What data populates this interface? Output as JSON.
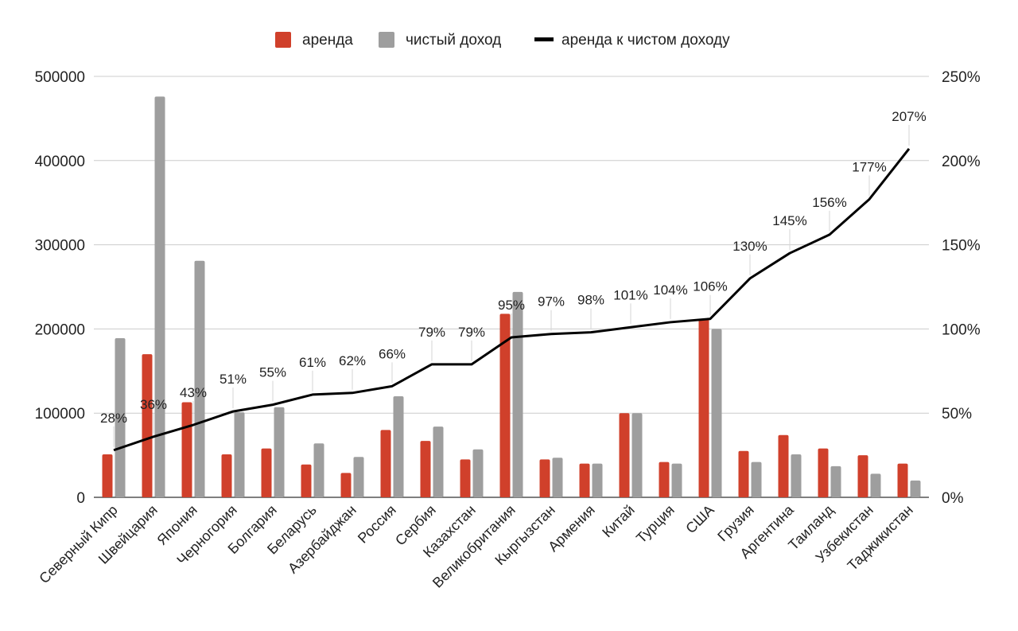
{
  "chart_data": {
    "type": "bar",
    "title": "",
    "legend": [
      {
        "key": "rent",
        "label": "аренда",
        "color": "#d0402b",
        "kind": "bar"
      },
      {
        "key": "income",
        "label": "чистый доход",
        "color": "#9e9e9e",
        "kind": "bar"
      },
      {
        "key": "ratio",
        "label": "аренда к чистом доходу",
        "color": "#000000",
        "kind": "line"
      }
    ],
    "legend_position": "top",
    "categories": [
      "Северный Кипр",
      "Швейцария",
      "Япония",
      "Черногория",
      "Болгария",
      "Беларусь",
      "Азербайджан",
      "Россия",
      "Сербия",
      "Казахстан",
      "Великобритания",
      "Кыргызстан",
      "Армения",
      "Китай",
      "Турция",
      "США",
      "Грузия",
      "Аргентина",
      "Таиланд",
      "Узбекистан",
      "Таджикистан"
    ],
    "series": [
      {
        "name": "аренда",
        "axis": "left",
        "values": [
          51000,
          170000,
          113000,
          51000,
          58000,
          39000,
          29000,
          80000,
          67000,
          45000,
          218000,
          45000,
          40000,
          100000,
          42000,
          212000,
          55000,
          74000,
          58000,
          50000,
          40000
        ]
      },
      {
        "name": "чистый доход",
        "axis": "left",
        "values": [
          189000,
          476000,
          281000,
          101000,
          107000,
          64000,
          48000,
          120000,
          84000,
          57000,
          244000,
          47000,
          40000,
          100000,
          40000,
          200000,
          42000,
          51000,
          37000,
          28000,
          20000
        ]
      },
      {
        "name": "аренда к чистом доходу",
        "axis": "right",
        "values": [
          28,
          36,
          43,
          51,
          55,
          61,
          62,
          66,
          79,
          79,
          95,
          97,
          98,
          101,
          104,
          106,
          130,
          145,
          156,
          177,
          207
        ],
        "labels": [
          "28%",
          "36%",
          "43%",
          "51%",
          "55%",
          "61%",
          "62%",
          "66%",
          "79%",
          "79%",
          "95%",
          "97%",
          "98%",
          "101%",
          "104%",
          "106%",
          "130%",
          "145%",
          "156%",
          "177%",
          "207%"
        ]
      }
    ],
    "left_axis": {
      "ylim": [
        0,
        500000
      ],
      "ticks": [
        "0",
        "100000",
        "200000",
        "300000",
        "400000",
        "500000"
      ]
    },
    "right_axis": {
      "ylim": [
        0,
        250
      ],
      "ticks": [
        "0%",
        "50%",
        "100%",
        "150%",
        "200%",
        "250%"
      ]
    },
    "grid": true,
    "xlabel": "",
    "ylabel": ""
  }
}
